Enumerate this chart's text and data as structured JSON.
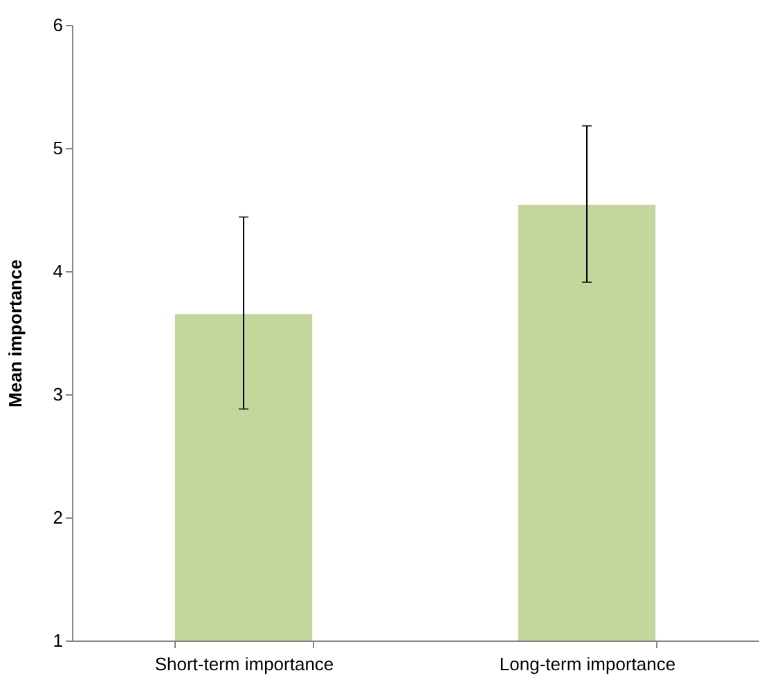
{
  "chart_data": {
    "type": "bar",
    "ylabel": "Mean importance",
    "categories": [
      "Short-term importance",
      "Long-term importance"
    ],
    "values": [
      3.65,
      4.54
    ],
    "errors": [
      [
        2.88,
        4.44
      ],
      [
        3.91,
        5.18
      ]
    ],
    "color": "#c3d69b",
    "ylim": [
      1,
      6
    ],
    "yticks": [
      1,
      2,
      3,
      4,
      5,
      6
    ],
    "grid": false
  }
}
